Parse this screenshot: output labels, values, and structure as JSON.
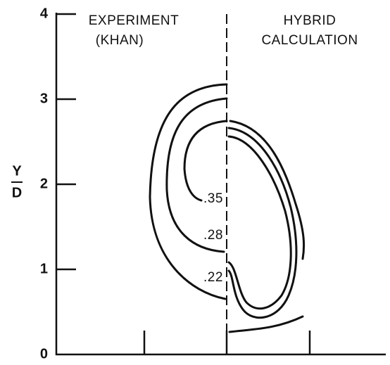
{
  "chart_data": {
    "type": "contour",
    "ylabel_top": "Y",
    "ylabel_bottom": "D",
    "ylim": [
      0,
      4
    ],
    "yticks": [
      0,
      1,
      2,
      3,
      4
    ],
    "annotations": [
      "EXPERIMENT",
      "(KHAN)",
      "HYBRID",
      "CALCULATION"
    ],
    "levels": [
      {
        "value": 0.35,
        "label": ".35"
      },
      {
        "value": 0.28,
        "label": ".28"
      },
      {
        "value": 0.22,
        "label": ".22"
      }
    ]
  }
}
